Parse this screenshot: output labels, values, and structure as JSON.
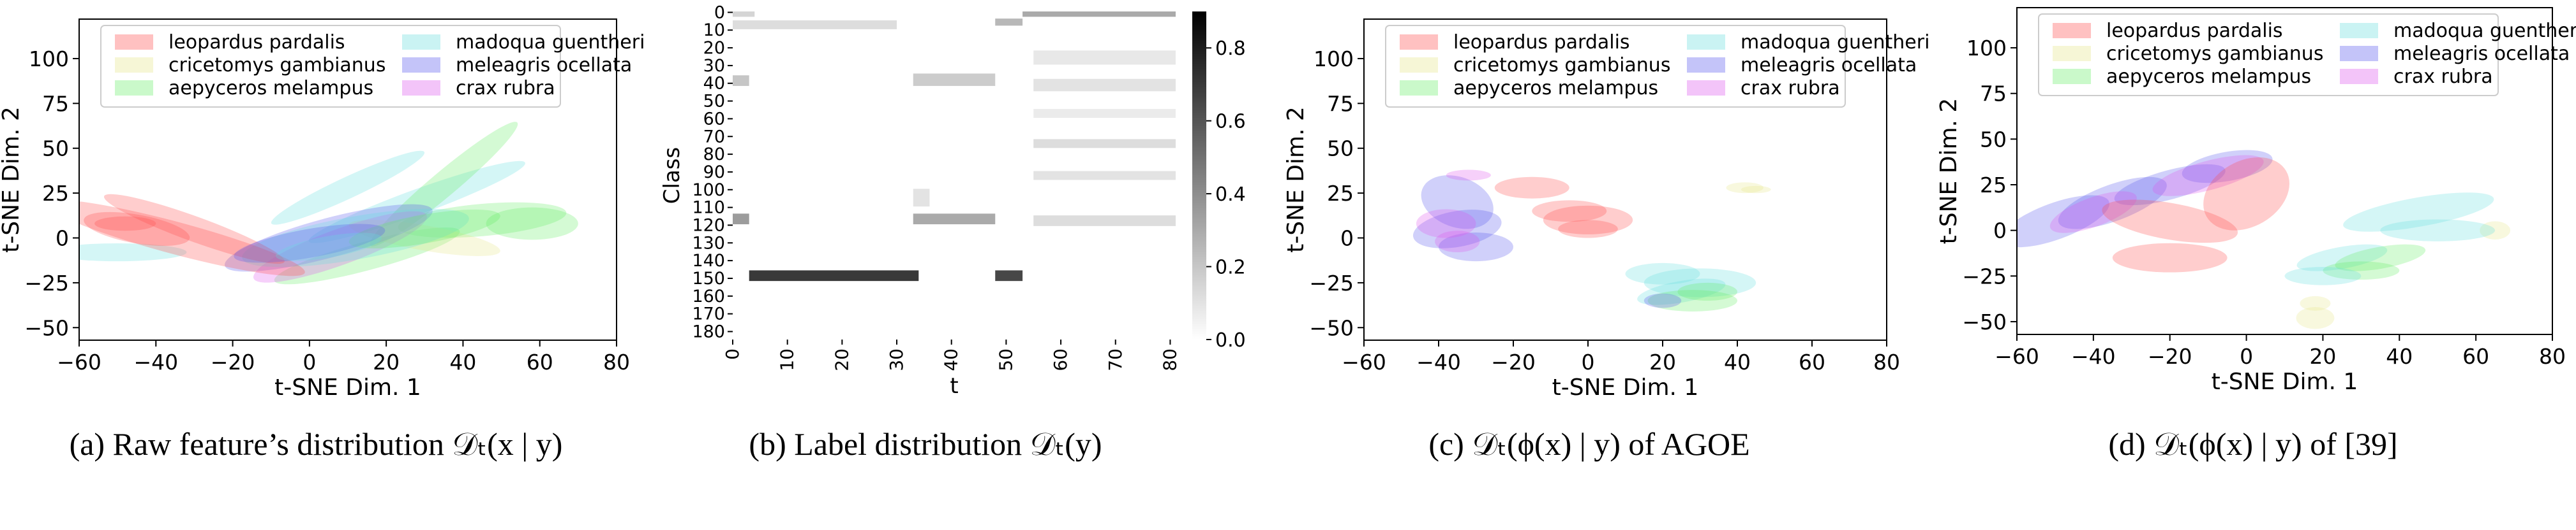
{
  "species": [
    {
      "name": "leopardus pardalis",
      "color": "#ff4d4d"
    },
    {
      "name": "cricetomys gambianus",
      "color": "#e6e68a"
    },
    {
      "name": "aepyceros melampus",
      "color": "#66ee66"
    },
    {
      "name": "madoqua guentheri",
      "color": "#66dddd"
    },
    {
      "name": "meleagris ocellata",
      "color": "#5555ee"
    },
    {
      "name": "crax rubra",
      "color": "#dd55ee"
    }
  ],
  "captions": [
    "(a)  Raw feature’s distribution 𝒟ₜ(x | y)",
    "(b)  Label distribution 𝒟ₜ(y)",
    "(c)  𝒟ₜ(ϕ(x) | y) of AGOE",
    "(d)  𝒟ₜ(ϕ(x) | y) of [39]"
  ],
  "chart_data": [
    {
      "type": "scatter",
      "xlabel": "t-SNE Dim. 1",
      "ylabel": "t-SNE Dim. 2",
      "xlim": [
        -60,
        80
      ],
      "ylim": [
        -57,
        122
      ],
      "xticks": [
        -60,
        -40,
        -20,
        0,
        20,
        40,
        60,
        80
      ],
      "yticks": [
        -50,
        -25,
        0,
        25,
        50,
        75,
        100
      ],
      "legend": "top",
      "note": "density ellipses per class",
      "ellipses": [
        {
          "class": 3,
          "cx": 10,
          "cy": 28,
          "rx": 22,
          "ry": 6,
          "angle": 25
        },
        {
          "class": 3,
          "cx": 28,
          "cy": 20,
          "rx": 30,
          "ry": 7,
          "angle": 20
        },
        {
          "class": 2,
          "cx": 35,
          "cy": 30,
          "rx": 25,
          "ry": 7,
          "angle": 40
        },
        {
          "class": 2,
          "cx": 45,
          "cy": 10,
          "rx": 22,
          "ry": 9,
          "angle": 5
        },
        {
          "class": 2,
          "cx": 58,
          "cy": 8,
          "rx": 12,
          "ry": 9,
          "angle": 0
        },
        {
          "class": 2,
          "cx": 15,
          "cy": -10,
          "rx": 25,
          "ry": 8,
          "angle": 15
        },
        {
          "class": 1,
          "cx": 30,
          "cy": 0,
          "rx": 20,
          "ry": 7,
          "angle": -10
        },
        {
          "class": 3,
          "cx": -50,
          "cy": -8,
          "rx": 18,
          "ry": 5,
          "angle": 0
        },
        {
          "class": 4,
          "cx": 5,
          "cy": 0,
          "rx": 28,
          "ry": 11,
          "angle": 15
        },
        {
          "class": 5,
          "cx": 8,
          "cy": -5,
          "rx": 24,
          "ry": 10,
          "angle": 20
        },
        {
          "class": 3,
          "cx": 12,
          "cy": 0,
          "rx": 30,
          "ry": 12,
          "angle": 10
        },
        {
          "class": 2,
          "cx": 30,
          "cy": 5,
          "rx": 20,
          "ry": 8,
          "angle": 10
        },
        {
          "class": 0,
          "cx": -35,
          "cy": 0,
          "rx": 35,
          "ry": 9,
          "angle": -15
        },
        {
          "class": 0,
          "cx": -30,
          "cy": 5,
          "rx": 25,
          "ry": 7,
          "angle": -20
        },
        {
          "class": 0,
          "cx": -45,
          "cy": 5,
          "rx": 14,
          "ry": 8,
          "angle": -10
        },
        {
          "class": 0,
          "cx": -48,
          "cy": 8,
          "rx": 8,
          "ry": 4,
          "angle": 0
        },
        {
          "class": 4,
          "cx": 0,
          "cy": -3,
          "rx": 20,
          "ry": 8,
          "angle": 10
        },
        {
          "class": 3,
          "cx": 5,
          "cy": -5,
          "rx": 14,
          "ry": 6,
          "angle": 10
        }
      ]
    },
    {
      "type": "heatmap",
      "xlabel": "t",
      "ylabel": "Class",
      "xlim": [
        0,
        81
      ],
      "ylim": [
        0,
        185
      ],
      "xticks": [
        0,
        10,
        20,
        30,
        40,
        50,
        60,
        70,
        80
      ],
      "yticks": [
        0,
        10,
        20,
        30,
        40,
        50,
        60,
        70,
        80,
        90,
        100,
        110,
        120,
        130,
        140,
        150,
        160,
        170,
        180
      ],
      "colorbar": {
        "min": 0.0,
        "max": 0.9,
        "ticks": [
          0.0,
          0.2,
          0.4,
          0.6,
          0.8
        ]
      },
      "blocks": [
        {
          "t0": 0,
          "t1": 4,
          "c0": 0,
          "c1": 3,
          "v": 0.15
        },
        {
          "t0": 53,
          "t1": 81,
          "c0": 0,
          "c1": 3,
          "v": 0.3
        },
        {
          "t0": 0,
          "t1": 30,
          "c0": 5,
          "c1": 10,
          "v": 0.12
        },
        {
          "t0": 48,
          "t1": 53,
          "c0": 4,
          "c1": 8,
          "v": 0.25
        },
        {
          "t0": 0,
          "t1": 3,
          "c0": 36,
          "c1": 42,
          "v": 0.2
        },
        {
          "t0": 33,
          "t1": 48,
          "c0": 35,
          "c1": 42,
          "v": 0.18
        },
        {
          "t0": 55,
          "t1": 81,
          "c0": 22,
          "c1": 30,
          "v": 0.08
        },
        {
          "t0": 55,
          "t1": 81,
          "c0": 38,
          "c1": 45,
          "v": 0.1
        },
        {
          "t0": 55,
          "t1": 81,
          "c0": 55,
          "c1": 60,
          "v": 0.07
        },
        {
          "t0": 55,
          "t1": 81,
          "c0": 72,
          "c1": 77,
          "v": 0.12
        },
        {
          "t0": 55,
          "t1": 81,
          "c0": 90,
          "c1": 95,
          "v": 0.1
        },
        {
          "t0": 55,
          "t1": 81,
          "c0": 115,
          "c1": 121,
          "v": 0.12
        },
        {
          "t0": 0,
          "t1": 3,
          "c0": 114,
          "c1": 120,
          "v": 0.35
        },
        {
          "t0": 33,
          "t1": 48,
          "c0": 114,
          "c1": 120,
          "v": 0.3
        },
        {
          "t0": 3,
          "t1": 34,
          "c0": 146,
          "c1": 152,
          "v": 0.7
        },
        {
          "t0": 48,
          "t1": 53,
          "c0": 146,
          "c1": 152,
          "v": 0.65
        },
        {
          "t0": 33,
          "t1": 36,
          "c0": 100,
          "c1": 110,
          "v": 0.1
        }
      ]
    },
    {
      "type": "scatter",
      "xlabel": "t-SNE Dim. 1",
      "ylabel": "t-SNE Dim. 2",
      "xlim": [
        -60,
        80
      ],
      "ylim": [
        -57,
        122
      ],
      "xticks": [
        -60,
        -40,
        -20,
        0,
        20,
        40,
        60,
        80
      ],
      "yticks": [
        -50,
        -25,
        0,
        25,
        50,
        75,
        100
      ],
      "legend": "top",
      "note": "density ellipses per class",
      "ellipses": [
        {
          "class": 1,
          "cx": 42,
          "cy": 28,
          "rx": 5,
          "ry": 3,
          "angle": 0
        },
        {
          "class": 1,
          "cx": 45,
          "cy": 27,
          "rx": 4,
          "ry": 2,
          "angle": 0
        },
        {
          "class": 4,
          "cx": -35,
          "cy": 20,
          "rx": 10,
          "ry": 14,
          "angle": -20
        },
        {
          "class": 4,
          "cx": -35,
          "cy": 5,
          "rx": 12,
          "ry": 10,
          "angle": 10
        },
        {
          "class": 4,
          "cx": -30,
          "cy": -5,
          "rx": 10,
          "ry": 8,
          "angle": 0
        },
        {
          "class": 5,
          "cx": -38,
          "cy": 8,
          "rx": 8,
          "ry": 8,
          "angle": 0
        },
        {
          "class": 5,
          "cx": -35,
          "cy": -2,
          "rx": 6,
          "ry": 6,
          "angle": 0
        },
        {
          "class": 5,
          "cx": -32,
          "cy": 35,
          "rx": 6,
          "ry": 3,
          "angle": 0
        },
        {
          "class": 0,
          "cx": -15,
          "cy": 28,
          "rx": 10,
          "ry": 6,
          "angle": 0
        },
        {
          "class": 0,
          "cx": -5,
          "cy": 15,
          "rx": 10,
          "ry": 6,
          "angle": 0
        },
        {
          "class": 0,
          "cx": 0,
          "cy": 10,
          "rx": 12,
          "ry": 8,
          "angle": 0
        },
        {
          "class": 0,
          "cx": 0,
          "cy": 5,
          "rx": 8,
          "ry": 5,
          "angle": 0
        },
        {
          "class": 3,
          "cx": 20,
          "cy": -20,
          "rx": 10,
          "ry": 6,
          "angle": 0
        },
        {
          "class": 3,
          "cx": 30,
          "cy": -25,
          "rx": 15,
          "ry": 8,
          "angle": 0
        },
        {
          "class": 3,
          "cx": 25,
          "cy": -30,
          "rx": 12,
          "ry": 6,
          "angle": 10
        },
        {
          "class": 2,
          "cx": 28,
          "cy": -35,
          "rx": 12,
          "ry": 6,
          "angle": 0
        },
        {
          "class": 2,
          "cx": 32,
          "cy": -30,
          "rx": 8,
          "ry": 5,
          "angle": 0
        },
        {
          "class": 4,
          "cx": 20,
          "cy": -35,
          "rx": 5,
          "ry": 4,
          "angle": 0
        }
      ]
    },
    {
      "type": "scatter",
      "xlabel": "t-SNE Dim. 1",
      "ylabel": "t-SNE Dim. 2",
      "xlim": [
        -60,
        80
      ],
      "ylim": [
        -57,
        122
      ],
      "xticks": [
        -60,
        -40,
        -20,
        0,
        20,
        40,
        60,
        80
      ],
      "yticks": [
        -50,
        -25,
        0,
        25,
        50,
        75,
        100
      ],
      "legend": "top",
      "note": "density ellipses per class",
      "ellipses": [
        {
          "class": 1,
          "cx": 18,
          "cy": -48,
          "rx": 5,
          "ry": 6,
          "angle": 0
        },
        {
          "class": 1,
          "cx": 65,
          "cy": 0,
          "rx": 4,
          "ry": 5,
          "angle": 0
        },
        {
          "class": 4,
          "cx": -50,
          "cy": 5,
          "rx": 15,
          "ry": 10,
          "angle": 20
        },
        {
          "class": 4,
          "cx": -35,
          "cy": 15,
          "rx": 15,
          "ry": 10,
          "angle": 20
        },
        {
          "class": 4,
          "cx": -20,
          "cy": 25,
          "rx": 15,
          "ry": 8,
          "angle": 15
        },
        {
          "class": 4,
          "cx": -5,
          "cy": 35,
          "rx": 12,
          "ry": 8,
          "angle": 10
        },
        {
          "class": 5,
          "cx": -10,
          "cy": 30,
          "rx": 15,
          "ry": 8,
          "angle": 15
        },
        {
          "class": 5,
          "cx": -40,
          "cy": 10,
          "rx": 12,
          "ry": 8,
          "angle": 20
        },
        {
          "class": 0,
          "cx": -20,
          "cy": 5,
          "rx": 18,
          "ry": 10,
          "angle": -10
        },
        {
          "class": 0,
          "cx": 0,
          "cy": 20,
          "rx": 12,
          "ry": 18,
          "angle": 30
        },
        {
          "class": 0,
          "cx": -20,
          "cy": -15,
          "rx": 15,
          "ry": 8,
          "angle": 0
        },
        {
          "class": 3,
          "cx": 45,
          "cy": 10,
          "rx": 20,
          "ry": 8,
          "angle": 10
        },
        {
          "class": 3,
          "cx": 50,
          "cy": 0,
          "rx": 15,
          "ry": 6,
          "angle": 0
        },
        {
          "class": 3,
          "cx": 25,
          "cy": -15,
          "rx": 12,
          "ry": 6,
          "angle": 10
        },
        {
          "class": 2,
          "cx": 35,
          "cy": -15,
          "rx": 12,
          "ry": 6,
          "angle": 10
        },
        {
          "class": 2,
          "cx": 30,
          "cy": -22,
          "rx": 10,
          "ry": 5,
          "angle": 0
        },
        {
          "class": 3,
          "cx": 20,
          "cy": -25,
          "rx": 10,
          "ry": 5,
          "angle": 0
        },
        {
          "class": 1,
          "cx": 18,
          "cy": -40,
          "rx": 4,
          "ry": 4,
          "angle": 0
        }
      ]
    }
  ]
}
